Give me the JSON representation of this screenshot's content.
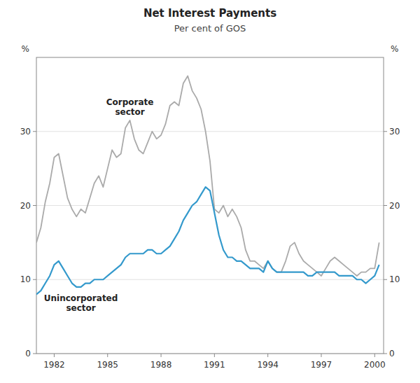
{
  "chart_data": {
    "type": "line",
    "title": "Net Interest Payments",
    "subtitle": "Per cent of GOS",
    "ylabel": "%",
    "y2label": "%",
    "x": [
      1981.0,
      1981.25,
      1981.5,
      1981.75,
      1982.0,
      1982.25,
      1982.5,
      1982.75,
      1983.0,
      1983.25,
      1983.5,
      1983.75,
      1984.0,
      1984.25,
      1984.5,
      1984.75,
      1985.0,
      1985.25,
      1985.5,
      1985.75,
      1986.0,
      1986.25,
      1986.5,
      1986.75,
      1987.0,
      1987.25,
      1987.5,
      1987.75,
      1988.0,
      1988.25,
      1988.5,
      1988.75,
      1989.0,
      1989.25,
      1989.5,
      1989.75,
      1990.0,
      1990.25,
      1990.5,
      1990.75,
      1991.0,
      1991.25,
      1991.5,
      1991.75,
      1992.0,
      1992.25,
      1992.5,
      1992.75,
      1993.0,
      1993.25,
      1993.5,
      1993.75,
      1994.0,
      1994.25,
      1994.5,
      1994.75,
      1995.0,
      1995.25,
      1995.5,
      1995.75,
      1996.0,
      1996.25,
      1996.5,
      1996.75,
      1997.0,
      1997.25,
      1997.5,
      1997.75,
      1998.0,
      1998.25,
      1998.5,
      1998.75,
      1999.0,
      1999.25,
      1999.5,
      1999.75,
      2000.0,
      2000.25
    ],
    "series": [
      {
        "name": "Corporate\nsector",
        "color": "#aaaaaa",
        "values": [
          15.0,
          17.0,
          20.5,
          23.0,
          26.5,
          27.0,
          24.0,
          21.0,
          19.5,
          18.5,
          19.5,
          19.0,
          21.0,
          23.0,
          24.0,
          22.5,
          25.0,
          27.5,
          26.5,
          27.0,
          30.5,
          31.5,
          29.0,
          27.5,
          27.0,
          28.5,
          30.0,
          29.0,
          29.5,
          31.0,
          33.5,
          34.0,
          33.5,
          36.5,
          37.5,
          35.5,
          34.5,
          33.0,
          30.0,
          26.0,
          19.5,
          19.0,
          20.0,
          18.5,
          19.5,
          18.5,
          17.0,
          14.0,
          12.5,
          12.5,
          12.0,
          11.5,
          12.5,
          11.5,
          11.0,
          11.0,
          12.5,
          14.5,
          15.0,
          13.5,
          12.5,
          12.0,
          11.5,
          11.0,
          10.5,
          11.5,
          12.5,
          13.0,
          12.5,
          12.0,
          11.5,
          11.0,
          10.5,
          11.0,
          11.0,
          11.5,
          11.5,
          15.0
        ]
      },
      {
        "name": "Unincorporated\nsector",
        "color": "#3399cc",
        "values": [
          8.0,
          8.5,
          9.5,
          10.5,
          12.0,
          12.5,
          11.5,
          10.5,
          9.5,
          9.0,
          9.0,
          9.5,
          9.5,
          10.0,
          10.0,
          10.0,
          10.5,
          11.0,
          11.5,
          12.0,
          13.0,
          13.5,
          13.5,
          13.5,
          13.5,
          14.0,
          14.0,
          13.5,
          13.5,
          14.0,
          14.5,
          15.5,
          16.5,
          18.0,
          19.0,
          20.0,
          20.5,
          21.5,
          22.5,
          22.0,
          19.0,
          16.0,
          14.0,
          13.0,
          13.0,
          12.5,
          12.5,
          12.0,
          11.5,
          11.5,
          11.5,
          11.0,
          12.5,
          11.5,
          11.0,
          11.0,
          11.0,
          11.0,
          11.0,
          11.0,
          11.0,
          10.5,
          10.5,
          11.0,
          11.0,
          11.0,
          11.0,
          11.0,
          10.5,
          10.5,
          10.5,
          10.5,
          10.0,
          10.0,
          9.5,
          10.0,
          10.5,
          12.0
        ]
      }
    ],
    "xlim": [
      1981.0,
      2000.5
    ],
    "xticks": [
      1982,
      1985,
      1988,
      1991,
      1994,
      1997,
      2000
    ],
    "ylim": [
      0,
      40
    ],
    "yticks": [
      0,
      10,
      20,
      30
    ],
    "y2lim": [
      0,
      40
    ],
    "y2ticks": [
      0,
      10,
      20,
      30
    ],
    "grid": true
  }
}
